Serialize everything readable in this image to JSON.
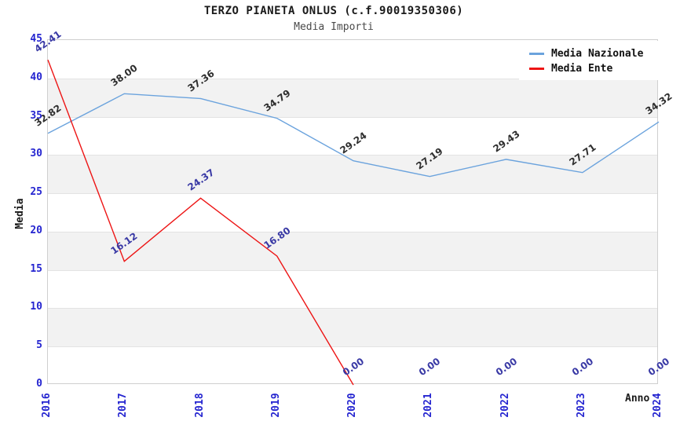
{
  "header": {
    "title": "TERZO PIANETA ONLUS (c.f.90019350306)",
    "subtitle": "Media Importi"
  },
  "chart_data": {
    "type": "line",
    "x": [
      2016,
      2017,
      2018,
      2019,
      2020,
      2021,
      2022,
      2023,
      2024
    ],
    "x_axis_title": "Anno",
    "y_axis_title": "Media",
    "ylim": [
      0,
      45
    ],
    "y_tick_step": 5,
    "grid": "horizontal-only",
    "legend_position": "top-right",
    "series": [
      {
        "name": "Media Nazionale",
        "color": "#6ba3dd",
        "label_color": "#2e2e2e",
        "values": [
          32.82,
          38.0,
          37.36,
          34.79,
          29.24,
          27.19,
          29.43,
          27.71,
          34.32
        ],
        "line_end_index": 8
      },
      {
        "name": "Media Ente",
        "color": "#ed1515",
        "label_color": "#3939a5",
        "values": [
          42.41,
          16.12,
          24.37,
          16.8,
          0.0,
          0.0,
          0.0,
          0.0,
          0.0
        ],
        "line_end_index": 4
      }
    ]
  },
  "colors": {
    "tick_label": "#2525d0",
    "band_gray": "#f2f2f2",
    "gridline": "#e3e3e3",
    "plot_border": "#cfcfcf",
    "background": "#ffffff"
  }
}
